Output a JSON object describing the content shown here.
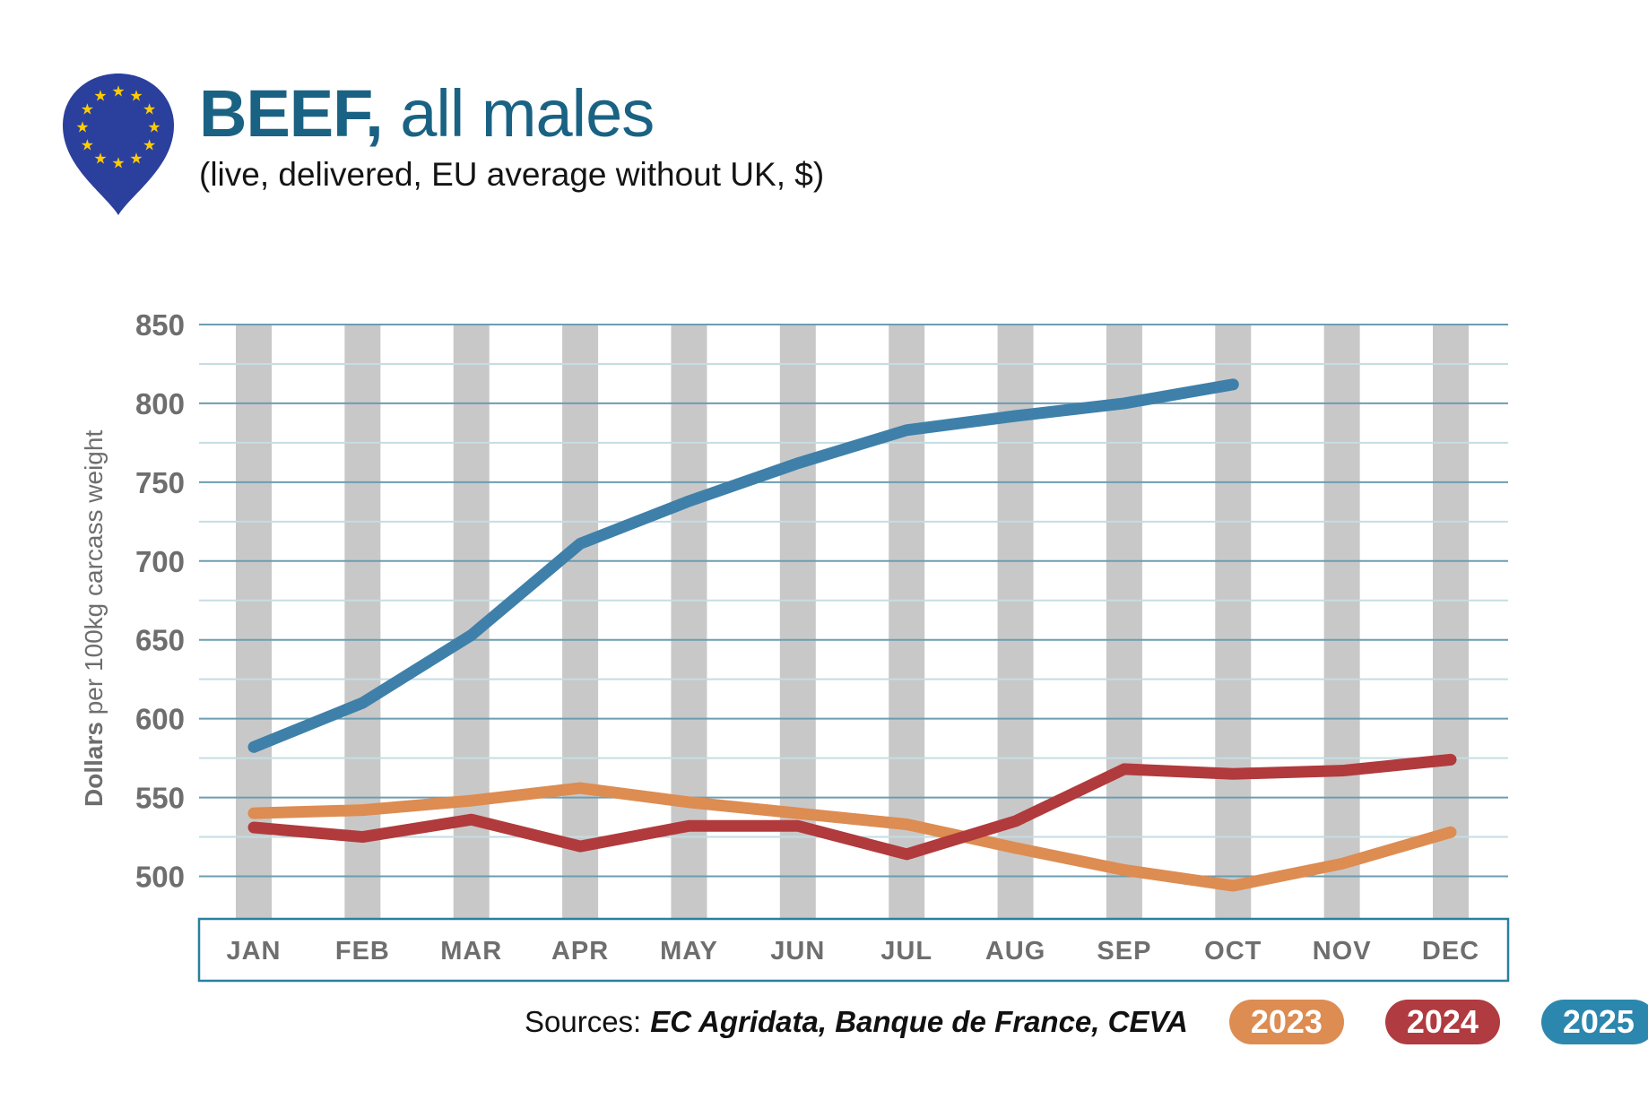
{
  "header": {
    "title_bold": "BEEF,",
    "title_regular": " all males",
    "subtitle": "(live, delivered, EU average without UK, $)"
  },
  "y_axis_title": {
    "bold": "Dollars",
    "rest": " per 100kg carcass weight"
  },
  "sources": {
    "label": "Sources:",
    "value": "EC Agridata, Banque de France, CEVA"
  },
  "legend": [
    {
      "label": "2023",
      "color": "#DD8C52"
    },
    {
      "label": "2024",
      "color": "#B03B40"
    },
    {
      "label": "2025",
      "color": "#2C87AE"
    }
  ],
  "colors": {
    "title": "#1A6283",
    "grid_major": "#6C9DB0",
    "grid_minor": "#C5DDE3",
    "month_band_bar": "#C8C8C8",
    "axis_box_border": "#2A7F9F",
    "tick_label": "#6E6E6E",
    "eu_pin_blue": "#2B3F9C",
    "eu_star_yellow": "#FFCC00"
  },
  "chart_data": {
    "type": "line",
    "title": "BEEF, all males (live, delivered, EU average without UK, $)",
    "xlabel": "",
    "ylabel": "Dollars per 100kg carcass weight",
    "categories": [
      "JAN",
      "FEB",
      "MAR",
      "APR",
      "MAY",
      "JUN",
      "JUL",
      "AUG",
      "SEP",
      "OCT",
      "NOV",
      "DEC"
    ],
    "series": [
      {
        "name": "2023",
        "color": "#DD8C52",
        "values": [
          540,
          542,
          548,
          556,
          547,
          540,
          533,
          518,
          504,
          494,
          508,
          528
        ]
      },
      {
        "name": "2024",
        "color": "#B13A3C",
        "values": [
          531,
          525,
          536,
          519,
          532,
          532,
          514,
          535,
          568,
          565,
          567,
          574
        ]
      },
      {
        "name": "2025",
        "color": "#3E80AA",
        "values": [
          582,
          610,
          653,
          711,
          738,
          762,
          783,
          792,
          800,
          812
        ]
      }
    ],
    "ylim": [
      475,
      850
    ],
    "yticks_major": [
      500,
      550,
      600,
      650,
      700,
      750,
      800,
      850
    ],
    "yticks_minor": [
      525,
      575,
      625,
      675,
      725,
      775,
      825
    ],
    "grid": true,
    "legend_position": "bottom-right",
    "notes": "2025 series ends at OCT"
  }
}
